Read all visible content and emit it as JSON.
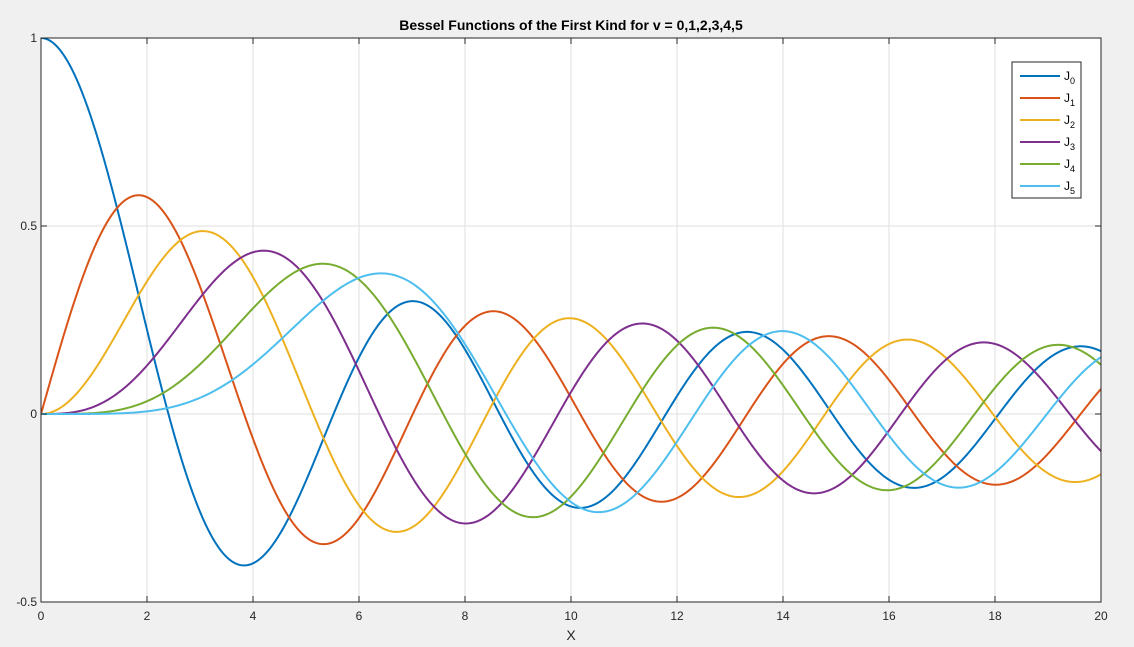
{
  "chart_data": {
    "type": "line",
    "title": "Bessel Functions of the First Kind for v = 0,1,2,3,4,5",
    "xlabel": "X",
    "ylabel": "",
    "xlim": [
      0,
      20
    ],
    "ylim": [
      -0.5,
      1
    ],
    "xticks": [
      "0",
      "2",
      "4",
      "6",
      "8",
      "10",
      "12",
      "14",
      "16",
      "18",
      "20"
    ],
    "yticks": [
      "-0.5",
      "0",
      "0.5",
      "1"
    ],
    "grid": true,
    "legend_position": "top-right",
    "series": [
      {
        "name": "J",
        "sub": "0",
        "order": 0,
        "color": "#0072BD"
      },
      {
        "name": "J",
        "sub": "1",
        "order": 1,
        "color": "#D95319"
      },
      {
        "name": "J",
        "sub": "2",
        "order": 2,
        "color": "#EDB120"
      },
      {
        "name": "J",
        "sub": "3",
        "order": 3,
        "color": "#7E2F8E"
      },
      {
        "name": "J",
        "sub": "4",
        "order": 4,
        "color": "#77AC30"
      },
      {
        "name": "J",
        "sub": "5",
        "order": 5,
        "color": "#4DBEEE"
      }
    ]
  }
}
